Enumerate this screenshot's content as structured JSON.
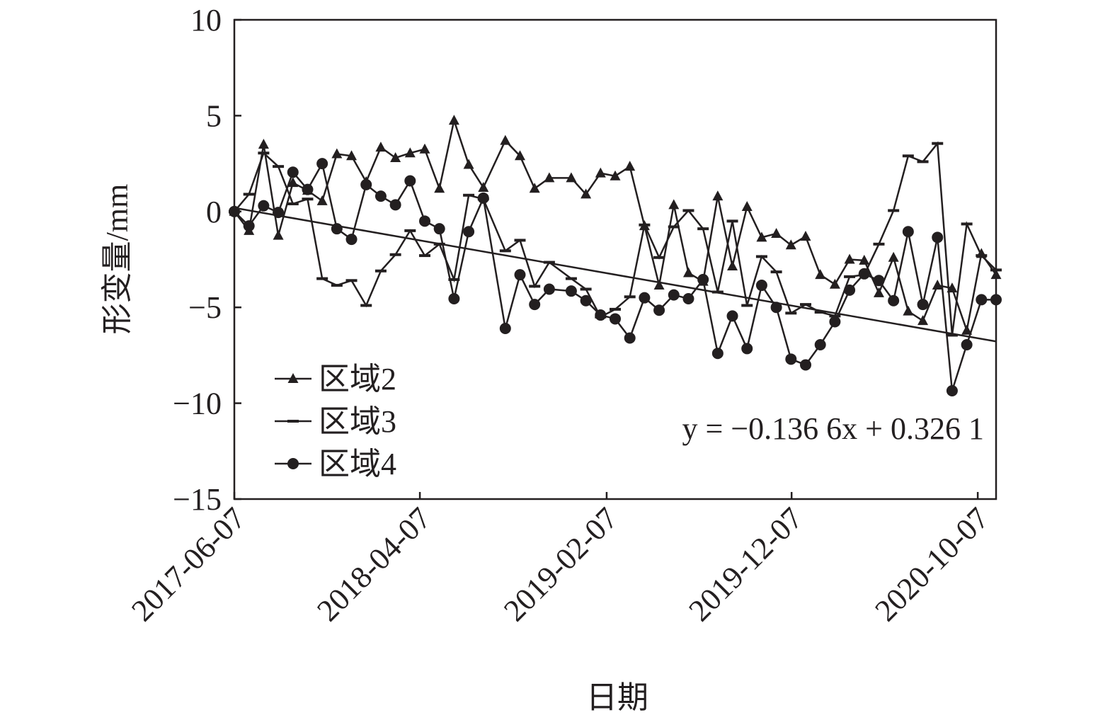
{
  "chart_data": {
    "type": "line",
    "y_label": "形变量/mm",
    "x_label": "日期",
    "x": [
      "2017-06-07",
      "2017-07-01",
      "2017-07-25",
      "2017-08-18",
      "2017-09-11",
      "2017-10-05",
      "2017-10-29",
      "2017-11-22",
      "2017-12-16",
      "2018-01-09",
      "2018-02-02",
      "2018-02-26",
      "2018-03-22",
      "2018-04-15",
      "2018-05-09",
      "2018-06-02",
      "2018-06-26",
      "2018-07-20",
      "2018-08-25",
      "2018-09-18",
      "2018-10-12",
      "2018-11-05",
      "2018-12-11",
      "2019-01-04",
      "2019-01-28",
      "2019-02-21",
      "2019-03-17",
      "2019-04-10",
      "2019-05-04",
      "2019-05-28",
      "2019-06-21",
      "2019-07-15",
      "2019-08-08",
      "2019-09-01",
      "2019-09-25",
      "2019-10-19",
      "2019-11-12",
      "2019-12-06",
      "2019-12-30",
      "2020-01-23",
      "2020-02-16",
      "2020-03-11",
      "2020-04-04",
      "2020-04-28",
      "2020-05-22",
      "2020-06-15",
      "2020-07-09",
      "2020-08-02",
      "2020-08-26",
      "2020-09-19",
      "2020-10-13",
      "2020-11-06"
    ],
    "series": [
      {
        "name": "区域2",
        "color": "#231f20",
        "marker": "triangle",
        "values": [
          0,
          -1.0,
          3.5,
          -1.25,
          1.5,
          1.1,
          0.55,
          3.0,
          2.9,
          1.55,
          3.35,
          2.8,
          3.05,
          3.25,
          1.2,
          4.75,
          2.45,
          1.25,
          3.7,
          2.9,
          1.2,
          1.75,
          1.75,
          0.9,
          2.0,
          1.85,
          2.35,
          -0.75,
          -3.85,
          0.35,
          -3.2,
          -3.65,
          0.8,
          -2.85,
          0.25,
          -1.35,
          -1.15,
          -1.75,
          -1.3,
          -3.3,
          -3.8,
          -2.5,
          -2.55,
          -4.25,
          -2.4,
          -5.2,
          -5.7,
          -3.85,
          -4.0,
          -6.2,
          -2.2,
          -3.3
        ]
      },
      {
        "name": "区域3",
        "color": "#231f20",
        "marker": "dash",
        "values": [
          0,
          0.9,
          3.05,
          2.35,
          0.4,
          0.65,
          -3.5,
          -3.85,
          -3.6,
          -4.9,
          -3.1,
          -2.25,
          -1.0,
          -2.3,
          -1.7,
          -3.55,
          0.85,
          0.65,
          -2.05,
          -1.5,
          -3.9,
          -2.65,
          -3.5,
          -4.05,
          -5.5,
          -5.1,
          -4.45,
          -0.7,
          -2.4,
          -0.8,
          0.05,
          -0.9,
          -4.2,
          -0.5,
          -4.9,
          -2.35,
          -3.15,
          -5.3,
          -4.85,
          -5.25,
          -5.45,
          -3.4,
          -3.3,
          -1.7,
          0.05,
          2.9,
          2.6,
          3.55,
          -6.45,
          -0.65,
          -2.3,
          -3.05
        ]
      },
      {
        "name": "区域4",
        "color": "#231f20",
        "marker": "circle",
        "values": [
          0,
          -0.75,
          0.3,
          -0.05,
          2.05,
          1.15,
          2.5,
          -0.9,
          -1.45,
          1.4,
          0.8,
          0.35,
          1.6,
          -0.5,
          -0.9,
          -4.55,
          -1.05,
          0.7,
          -6.1,
          -3.3,
          -4.85,
          -4.05,
          -4.15,
          -4.65,
          -5.4,
          -5.6,
          -6.6,
          -4.5,
          -5.15,
          -4.35,
          -4.55,
          -3.55,
          -7.4,
          -5.45,
          -7.15,
          -3.85,
          -5.0,
          -7.7,
          -8.0,
          -6.95,
          -5.75,
          -4.1,
          -3.25,
          -3.6,
          -4.65,
          -1.05,
          -4.85,
          -1.35,
          -9.35,
          -6.95,
          -4.6,
          -4.6
        ]
      }
    ],
    "trendline": {
      "slope": -0.1366,
      "intercept": 0.3261,
      "label": "y = −0.136 6x + 0.326 1"
    },
    "xlim": [
      "2017-06-07",
      "2020-11-06"
    ],
    "xticks": [
      "2017-06-07",
      "2018-04-07",
      "2019-02-07",
      "2019-12-07",
      "2020-10-07"
    ],
    "ylim": [
      -15,
      10
    ],
    "yticks": [
      {
        "value": -15,
        "label": "−15"
      },
      {
        "value": -10,
        "label": "−10"
      },
      {
        "value": -5,
        "label": "−5"
      },
      0,
      5,
      10
    ],
    "legend": "lower left"
  }
}
